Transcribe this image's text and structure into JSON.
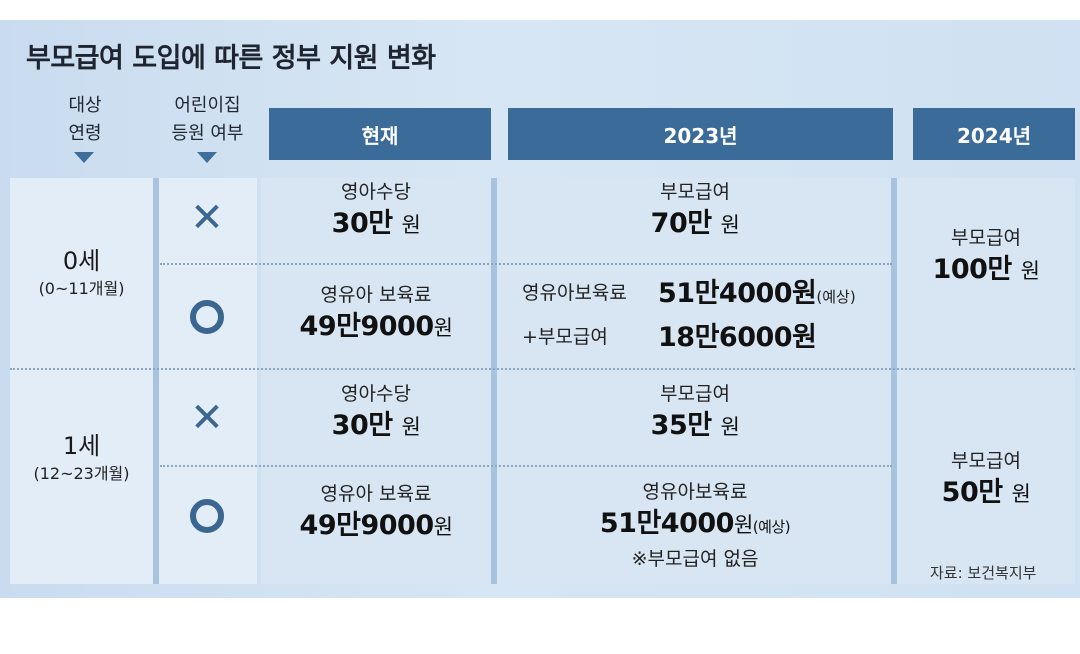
{
  "title": "부모급여 도입에 따른 정부 지원 변화",
  "headers": {
    "age_line1": "대상",
    "age_line2": "연령",
    "daycare_line1": "어린이집",
    "daycare_line2": "등원 여부",
    "current": "현재",
    "y2023": "2023년",
    "y2024": "2024년"
  },
  "rows": {
    "age0": {
      "label": "0세",
      "range": "(0~11개월)",
      "no_daycare": {
        "mark": "✕",
        "current_label": "영아수당",
        "current_amount": "30만",
        "current_unit": "원",
        "y2023_label": "부모급여",
        "y2023_amount": "70만",
        "y2023_unit": "원"
      },
      "daycare": {
        "mark": "○",
        "current_label": "영유아 보육료",
        "current_amount": "49만9000",
        "current_unit": "원",
        "y2023_line1_label": "영유아보육료",
        "y2023_line1_amount": "51만4000원",
        "y2023_line1_note": "(예상)",
        "y2023_line2_label": "+부모급여",
        "y2023_line2_amount": "18만6000원"
      },
      "y2024_label": "부모급여",
      "y2024_amount": "100만",
      "y2024_unit": "원"
    },
    "age1": {
      "label": "1세",
      "range": "(12~23개월)",
      "no_daycare": {
        "mark": "✕",
        "current_label": "영아수당",
        "current_amount": "30만",
        "current_unit": "원",
        "y2023_label": "부모급여",
        "y2023_amount": "35만",
        "y2023_unit": "원"
      },
      "daycare": {
        "mark": "○",
        "current_label": "영유아 보육료",
        "current_amount": "49만9000",
        "current_unit": "원",
        "y2023_label": "영유아보육료",
        "y2023_amount": "51만4000",
        "y2023_unit": "원",
        "y2023_note": "(예상)",
        "y2023_footnote": "※부모급여 없음"
      },
      "y2024_label": "부모급여",
      "y2024_amount": "50만",
      "y2024_unit": "원"
    }
  },
  "source": "자료: 보건복지부",
  "colors": {
    "header": "#3b6b98",
    "mark": "#3a6690",
    "panel": "#cfe1f2"
  }
}
